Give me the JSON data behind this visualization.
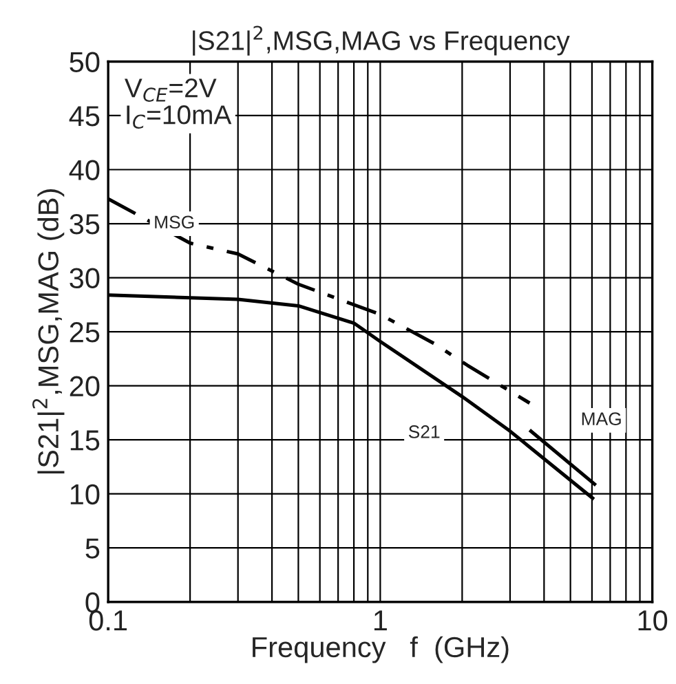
{
  "chart_data": {
    "type": "line",
    "title": "|S21|$^{2}$,MSG,MAG vs Frequency",
    "xlabel": "Frequency   f  (GHz)",
    "ylabel": "|S21|$^{2}$,MSG,MAG (dB)",
    "annotations": [
      "V$_{CE}$=2V\nI$_{C}$=10mA"
    ],
    "log": "x",
    "xlim": [
      0.1,
      10
    ],
    "xticks": [
      0.1,
      1,
      10
    ],
    "ylim": [
      0,
      50
    ],
    "yticks": [
      0,
      5,
      10,
      15,
      20,
      25,
      30,
      35,
      40,
      45,
      50
    ],
    "grid": true,
    "legend": false,
    "series": [
      {
        "name": "MSG",
        "color": "#000000",
        "line_style": "dashdot",
        "x": [
          0.1,
          0.2,
          0.3,
          0.5,
          1,
          1.58,
          2.09,
          3.54
        ],
        "values": [
          37.3,
          33.2,
          32.2,
          29.4,
          26.6,
          23.9,
          21.9,
          18.4
        ]
      },
      {
        "name": "S21",
        "color": "#000000",
        "line_style": "solid",
        "x": [
          0.1,
          0.3,
          0.5,
          0.8,
          1,
          2,
          3,
          6.1
        ],
        "values": [
          28.4,
          28.0,
          27.4,
          25.8,
          24.1,
          19.0,
          15.8,
          9.5
        ]
      },
      {
        "name": "MAG",
        "color": "#000000",
        "line_style": "solid",
        "x": [
          3.54,
          6.2
        ],
        "values": [
          15.9,
          10.8
        ]
      }
    ]
  }
}
